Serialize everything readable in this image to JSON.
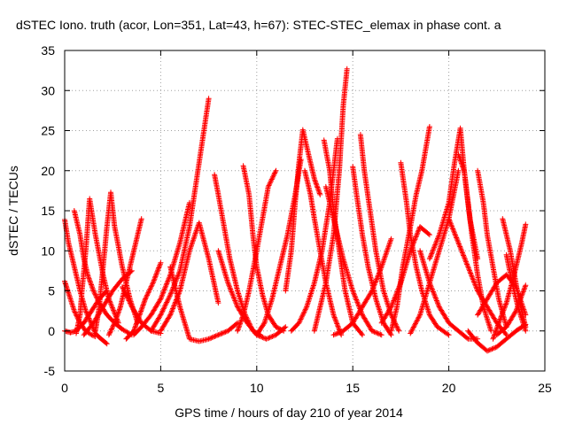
{
  "chart_data": {
    "type": "scatter",
    "title": "dSTEC Iono. truth (acor, Lon=351, Lat=43, h=67): STEC-STEC_elemax in phase cont. a",
    "xlabel": "GPS time / hours of day 210 of year 2014",
    "ylabel": "dSTEC  / TECUs",
    "xlim": [
      0,
      25
    ],
    "ylim": [
      -5,
      35
    ],
    "x_ticks": [
      "0",
      "5",
      "10",
      "15",
      "20",
      "25"
    ],
    "y_ticks": [
      "-5",
      "0",
      "5",
      "10",
      "15",
      "20",
      "25",
      "30",
      "35"
    ],
    "grid": true,
    "legend": "none",
    "marker": "plus",
    "color": "#ff0000",
    "series": [
      {
        "x": [
          0.0,
          0.2,
          0.5,
          0.8,
          1.1,
          1.4,
          1.6,
          1.8,
          2.0,
          2.2
        ],
        "y": [
          13.9,
          11.0,
          8.0,
          5.0,
          2.5,
          0.8,
          -0.3,
          -0.8,
          -1.2,
          -1.6
        ]
      },
      {
        "x": [
          0.0,
          0.3,
          0.5,
          0.8,
          1.1,
          1.4,
          1.6
        ],
        "y": [
          6.2,
          4.0,
          2.5,
          1.0,
          0.0,
          -0.5,
          -0.7
        ]
      },
      {
        "x": [
          0.0,
          0.3,
          0.6,
          1.0,
          1.4,
          1.8,
          2.2
        ],
        "y": [
          0.0,
          -0.2,
          0.0,
          1.0,
          2.5,
          4.0,
          5.0
        ]
      },
      {
        "x": [
          0.5,
          0.8,
          1.0,
          1.2,
          1.5,
          1.8,
          2.2,
          2.6,
          3.0,
          3.5
        ],
        "y": [
          15.0,
          12.0,
          9.0,
          7.0,
          5.0,
          3.5,
          2.0,
          1.0,
          0.2,
          -0.5
        ]
      },
      {
        "x": [
          0.6,
          0.8,
          0.9,
          1.1,
          1.3,
          1.6,
          2.0,
          2.3,
          2.8
        ],
        "y": [
          -0.3,
          2.0,
          5.0,
          10.0,
          16.5,
          12.0,
          7.0,
          4.0,
          1.0
        ]
      },
      {
        "x": [
          1.0,
          1.5,
          2.0,
          2.5,
          3.0,
          3.5
        ],
        "y": [
          -0.5,
          1.0,
          3.0,
          5.0,
          6.5,
          7.5
        ]
      },
      {
        "x": [
          1.6,
          1.8,
          2.0,
          2.2,
          2.4,
          2.6,
          3.0,
          3.4,
          3.8
        ],
        "y": [
          0.0,
          3.0,
          8.0,
          13.0,
          17.3,
          13.0,
          8.0,
          4.0,
          1.0
        ]
      },
      {
        "x": [
          2.3,
          2.6,
          2.9,
          3.2,
          3.4,
          3.6,
          3.8,
          4.0
        ],
        "y": [
          -0.5,
          1.0,
          3.0,
          6.0,
          8.0,
          10.0,
          12.0,
          14.0
        ]
      },
      {
        "x": [
          3.0,
          3.5,
          4.0,
          4.5,
          5.0
        ],
        "y": [
          5.5,
          3.0,
          1.0,
          0.0,
          -0.3
        ]
      },
      {
        "x": [
          3.2,
          3.6,
          3.9,
          4.2,
          4.6,
          5.0
        ],
        "y": [
          -1.0,
          0.0,
          2.0,
          4.0,
          6.0,
          8.5
        ]
      },
      {
        "x": [
          3.6,
          4.0,
          4.5,
          5.0,
          5.5,
          6.0,
          6.5
        ],
        "y": [
          -0.5,
          0.5,
          2.0,
          4.0,
          7.0,
          11.0,
          16.0
        ]
      },
      {
        "x": [
          4.5,
          5.0,
          5.5,
          6.0,
          6.5,
          7.0,
          7.5
        ],
        "y": [
          0.0,
          2.0,
          4.5,
          7.5,
          13.0,
          21.0,
          29.0
        ]
      },
      {
        "x": [
          5.0,
          5.5,
          6.0,
          6.5,
          7.0,
          7.5,
          8.0
        ],
        "y": [
          0.0,
          2.0,
          5.0,
          10.0,
          13.5,
          9.0,
          3.5
        ]
      },
      {
        "x": [
          5.5,
          6.0,
          6.5,
          7.0,
          7.5,
          8.0,
          8.5,
          9.0
        ],
        "y": [
          8.0,
          3.0,
          -1.0,
          -1.3,
          -1.0,
          -0.5,
          0.0,
          1.0
        ]
      },
      {
        "x": [
          7.8,
          8.0,
          8.3,
          8.6,
          9.0,
          9.4,
          9.8,
          10.2
        ],
        "y": [
          19.5,
          17.0,
          13.0,
          9.0,
          5.0,
          2.0,
          0.0,
          -0.5
        ]
      },
      {
        "x": [
          8.0,
          8.5,
          9.0,
          9.5,
          10.0,
          10.5,
          11.0,
          11.5
        ],
        "y": [
          10.0,
          6.0,
          3.0,
          1.0,
          -0.5,
          -1.0,
          -0.5,
          0.5
        ]
      },
      {
        "x": [
          9.3,
          9.6,
          9.8,
          10.0,
          10.3,
          10.6,
          11.0,
          11.4
        ],
        "y": [
          20.6,
          17.0,
          12.0,
          8.0,
          4.5,
          2.0,
          0.5,
          0.0
        ]
      },
      {
        "x": [
          9.0,
          9.3,
          9.6,
          10.0,
          10.3,
          10.6,
          11.0
        ],
        "y": [
          0.0,
          2.0,
          5.0,
          10.0,
          14.0,
          18.0,
          20.0
        ]
      },
      {
        "x": [
          10.0,
          10.4,
          10.8,
          11.2,
          11.6,
          12.0,
          12.3
        ],
        "y": [
          -0.5,
          1.0,
          4.0,
          8.0,
          12.0,
          17.0,
          21.4
        ]
      },
      {
        "x": [
          11.5,
          11.8,
          12.0,
          12.2,
          12.4,
          12.7,
          13.0,
          13.3
        ],
        "y": [
          5.0,
          10.0,
          16.0,
          21.0,
          25.1,
          22.0,
          19.0,
          17.0
        ]
      },
      {
        "x": [
          12.5,
          12.8,
          13.0,
          13.3,
          13.6,
          14.0,
          14.4
        ],
        "y": [
          20.0,
          17.0,
          14.0,
          10.0,
          6.0,
          2.0,
          -0.5
        ]
      },
      {
        "x": [
          11.8,
          12.2,
          12.6,
          13.0,
          13.4,
          13.8,
          14.2
        ],
        "y": [
          0.0,
          1.0,
          3.0,
          6.0,
          10.0,
          16.0,
          24.0
        ]
      },
      {
        "x": [
          13.0,
          13.3,
          13.6,
          14.0,
          14.3,
          14.5,
          14.7
        ],
        "y": [
          0.0,
          3.0,
          6.0,
          12.0,
          20.0,
          28.0,
          32.7
        ]
      },
      {
        "x": [
          13.5,
          13.8,
          14.0,
          14.3,
          14.6,
          15.0,
          15.5
        ],
        "y": [
          23.8,
          20.0,
          15.0,
          10.0,
          5.0,
          1.0,
          -0.5
        ]
      },
      {
        "x": [
          13.6,
          14.0,
          14.5,
          15.0,
          15.5,
          16.0,
          16.5
        ],
        "y": [
          18.0,
          14.0,
          9.0,
          5.0,
          2.0,
          0.0,
          -0.5
        ]
      },
      {
        "x": [
          14.0,
          14.5,
          15.0,
          15.5,
          16.0,
          16.5,
          17.0
        ],
        "y": [
          -0.5,
          0.0,
          1.0,
          3.0,
          5.0,
          8.0,
          11.5
        ]
      },
      {
        "x": [
          15.0,
          15.2,
          15.5,
          15.8,
          16.2,
          16.6,
          17.0
        ],
        "y": [
          20.5,
          17.0,
          12.0,
          8.0,
          4.0,
          1.0,
          -0.5
        ]
      },
      {
        "x": [
          15.4,
          15.6,
          15.9,
          16.2,
          16.6,
          17.0,
          17.4
        ],
        "y": [
          24.5,
          20.0,
          15.0,
          10.0,
          5.0,
          2.0,
          0.0
        ]
      },
      {
        "x": [
          16.5,
          17.0,
          17.5,
          18.0,
          18.5,
          19.0
        ],
        "y": [
          1.0,
          3.0,
          6.0,
          10.0,
          13.0,
          12.0
        ]
      },
      {
        "x": [
          17.0,
          17.3,
          17.6,
          18.0,
          18.3,
          18.6,
          19.0
        ],
        "y": [
          0.0,
          3.0,
          8.0,
          13.0,
          17.0,
          20.0,
          25.5
        ]
      },
      {
        "x": [
          17.5,
          17.8,
          18.0,
          18.3,
          18.6,
          19.0,
          19.4,
          20.0
        ],
        "y": [
          21.0,
          16.0,
          12.0,
          8.0,
          5.0,
          2.0,
          0.5,
          -0.5
        ]
      },
      {
        "x": [
          18.0,
          18.5,
          19.0,
          19.5,
          20.0,
          20.5
        ],
        "y": [
          -0.3,
          2.0,
          6.0,
          10.0,
          14.0,
          20.0
        ]
      },
      {
        "x": [
          18.5,
          19.0,
          19.5,
          20.0,
          20.5,
          21.0,
          21.5
        ],
        "y": [
          10.0,
          6.0,
          3.0,
          1.0,
          0.0,
          -1.0,
          -1.0
        ]
      },
      {
        "x": [
          19.0,
          19.5,
          20.0,
          20.3,
          20.6,
          20.8,
          21.1,
          21.5
        ],
        "y": [
          9.0,
          12.0,
          16.0,
          21.0,
          25.3,
          20.0,
          14.0,
          9.0
        ]
      },
      {
        "x": [
          20.0,
          20.5,
          21.0,
          21.5,
          22.0,
          22.5,
          23.0
        ],
        "y": [
          14.0,
          11.0,
          8.0,
          5.0,
          3.0,
          1.0,
          -0.5
        ]
      },
      {
        "x": [
          20.5,
          20.8,
          21.0,
          21.2,
          21.5,
          21.8,
          22.2
        ],
        "y": [
          22.0,
          20.0,
          16.0,
          12.0,
          7.0,
          3.0,
          0.0
        ]
      },
      {
        "x": [
          21.5,
          21.8,
          22.0,
          22.3,
          22.6,
          23.0
        ],
        "y": [
          20.0,
          16.0,
          12.0,
          8.0,
          4.0,
          0.5
        ]
      },
      {
        "x": [
          21.0,
          21.5,
          22.0,
          22.5,
          23.0,
          23.5,
          24.0
        ],
        "y": [
          0.0,
          -1.5,
          -2.5,
          -2.0,
          -1.0,
          0.0,
          0.8
        ]
      },
      {
        "x": [
          21.5,
          22.0,
          22.5,
          23.0,
          23.5,
          24.0
        ],
        "y": [
          2.0,
          4.0,
          6.0,
          7.0,
          5.5,
          2.0
        ]
      },
      {
        "x": [
          22.3,
          22.6,
          23.0,
          23.4,
          23.8,
          24.0
        ],
        "y": [
          -1.0,
          1.0,
          3.5,
          7.0,
          11.0,
          13.3
        ]
      },
      {
        "x": [
          22.8,
          23.2,
          23.6,
          24.0
        ],
        "y": [
          14.0,
          10.0,
          4.5,
          0.5
        ]
      },
      {
        "x": [
          23.0,
          23.3,
          23.6,
          24.0
        ],
        "y": [
          9.5,
          6.0,
          3.0,
          0.0
        ]
      },
      {
        "x": [
          22.5,
          23.0,
          23.5,
          24.0
        ],
        "y": [
          -0.5,
          0.5,
          2.5,
          5.7
        ]
      }
    ]
  }
}
